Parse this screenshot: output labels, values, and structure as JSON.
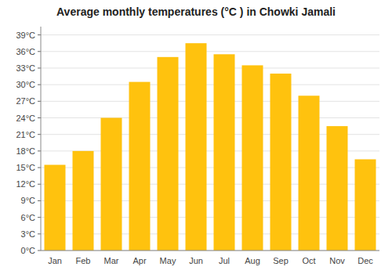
{
  "chart_data": {
    "type": "bar",
    "title": "Average monthly temperatures (°C ) in Chowki Jamali",
    "categories": [
      "Jan",
      "Feb",
      "Mar",
      "Apr",
      "May",
      "Jun",
      "Jul",
      "Aug",
      "Sep",
      "Oct",
      "Nov",
      "Dec"
    ],
    "values": [
      15.5,
      18.0,
      24.0,
      30.5,
      35.0,
      37.5,
      35.5,
      33.5,
      32.0,
      28.0,
      22.5,
      16.5
    ],
    "color": "#FFC20E",
    "ylim": [
      0,
      40.5
    ],
    "yticks": [
      {
        "value": 0,
        "label": "0°C"
      },
      {
        "value": 3,
        "label": "3°C"
      },
      {
        "value": 6,
        "label": "6°C"
      },
      {
        "value": 9,
        "label": "9°C"
      },
      {
        "value": 12,
        "label": "12°C"
      },
      {
        "value": 15,
        "label": "15°C"
      },
      {
        "value": 18,
        "label": "18°C"
      },
      {
        "value": 21,
        "label": "21°C"
      },
      {
        "value": 24,
        "label": "24°C"
      },
      {
        "value": 27,
        "label": "27°C"
      },
      {
        "value": 30,
        "label": "30°C"
      },
      {
        "value": 33,
        "label": "33°C"
      },
      {
        "value": 36,
        "label": "36°C"
      },
      {
        "value": 39,
        "label": "39°C"
      }
    ],
    "grid": true
  }
}
